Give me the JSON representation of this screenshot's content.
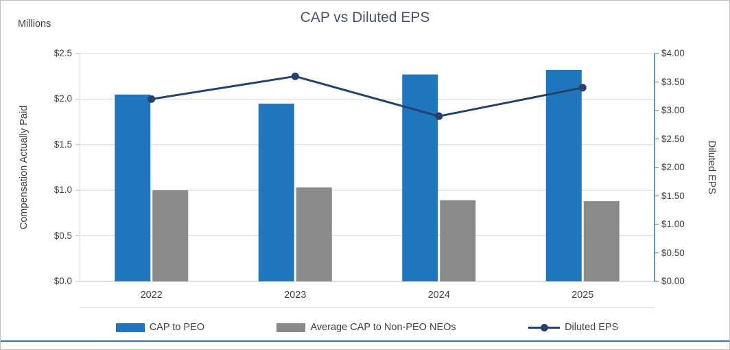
{
  "chart_data": {
    "type": "combo",
    "title": "CAP vs Diluted EPS",
    "categories": [
      "2022",
      "2023",
      "2024",
      "2025"
    ],
    "series": [
      {
        "name": "CAP to PEO",
        "type": "bar",
        "axis": "left",
        "color": "#1F76BC",
        "values": [
          2.05,
          1.95,
          2.27,
          2.32
        ]
      },
      {
        "name": "Average CAP to Non-PEO NEOs",
        "type": "bar",
        "axis": "left",
        "color": "#8A8A8A",
        "values": [
          1.0,
          1.03,
          0.89,
          0.88
        ]
      },
      {
        "name": "Diluted EPS",
        "type": "line",
        "axis": "right",
        "color": "#24426B",
        "values": [
          3.2,
          3.6,
          2.9,
          3.4
        ]
      }
    ],
    "left_axis": {
      "label": "Compensation Actually Paid",
      "units": "Millions",
      "min": 0,
      "max": 2.5,
      "tick_step": 0.5,
      "tick_labels": [
        "$0.0",
        "$0.5",
        "$1.0",
        "$1.5",
        "$2.0",
        "$2.5"
      ]
    },
    "right_axis": {
      "label": "Diluted EPS",
      "min": 0,
      "max": 4.0,
      "tick_step": 0.5,
      "tick_labels": [
        "$0.00",
        "$0.50",
        "$1.00",
        "$1.50",
        "$2.00",
        "$2.50",
        "$3.00",
        "$3.50",
        "$4.00"
      ]
    },
    "grid": true,
    "legend_position": "bottom"
  },
  "colors": {
    "title": "#44546A",
    "text": "#404040",
    "grid": "#D9D9D9",
    "axis_line": "#BFBFBF",
    "secondary_axis": "#2E75B6",
    "bottom_accent": "#2E75B6"
  }
}
